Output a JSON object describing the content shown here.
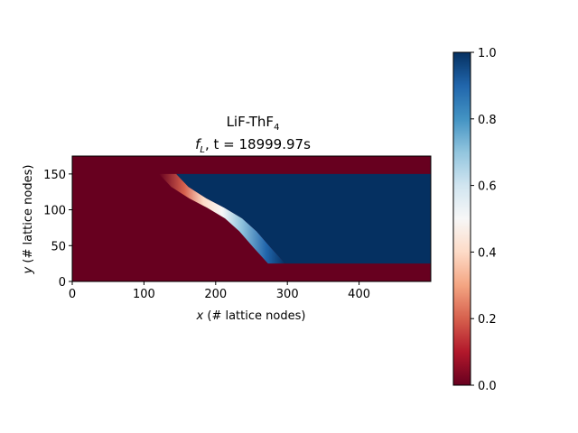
{
  "chart_data": {
    "type": "heatmap",
    "title": "LiF-ThF",
    "title_subscript": "4",
    "subtitle_f": "f",
    "subtitle_f_sub": "L",
    "subtitle_rest": ", t = 18999.97s",
    "xlabel_var": "x",
    "xlabel_rest": " (# lattice nodes)",
    "ylabel_var": "y",
    "ylabel_rest": " (# lattice nodes)",
    "xlim": [
      0,
      500
    ],
    "ylim": [
      0,
      175
    ],
    "xticks": [
      0,
      100,
      200,
      300,
      400
    ],
    "yticks": [
      0,
      50,
      100,
      150
    ],
    "colormap": "RdBu",
    "color_range": [
      0,
      1
    ],
    "colorbar_ticks": [
      0.0,
      0.2,
      0.4,
      0.6,
      0.8,
      1.0
    ],
    "colorbar_tick_labels": [
      "0.0",
      "0.2",
      "0.4",
      "0.6",
      "0.8",
      "1.0"
    ],
    "regions": {
      "background_value": 0.0,
      "liquid_value": 1.0,
      "liquid_band_y": [
        25,
        150
      ],
      "interface_curve": [
        [
          133,
          150
        ],
        [
          150,
          132
        ],
        [
          175,
          116
        ],
        [
          200,
          103
        ],
        [
          225,
          88
        ],
        [
          245,
          70
        ],
        [
          265,
          47
        ],
        [
          285,
          25
        ]
      ],
      "transition_width_x": 12
    }
  }
}
